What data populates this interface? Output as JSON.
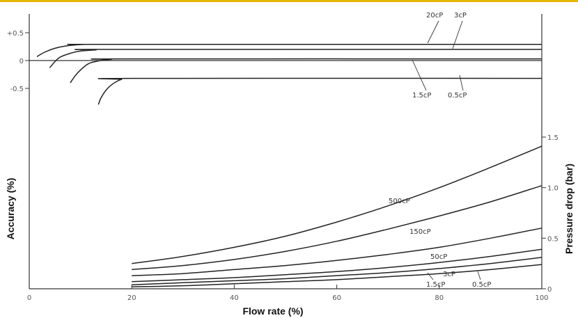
{
  "chart_data": {
    "type": "line",
    "xlabel": "Flow rate (%)",
    "ylabel_left": "Accuracy (%)",
    "ylabel_right": "Pressure drop (bar)",
    "x_ticks": [
      "0",
      "20",
      "40",
      "60",
      "80",
      "100"
    ],
    "xlim": [
      0,
      100
    ],
    "left_ticks": [
      "+0.5",
      "0",
      "-0.5"
    ],
    "left_ylim": [
      -1.0,
      0.8
    ],
    "right_ticks": [
      "1.5",
      "1.0",
      "0.5",
      "0"
    ],
    "right_ylim": [
      0,
      1.6
    ],
    "grid": false,
    "accuracy_series": [
      {
        "name": "20cP",
        "x": [
          1.5,
          3,
          5,
          7,
          9,
          11,
          15,
          100
        ],
        "y": [
          0.07,
          0.15,
          0.22,
          0.26,
          0.28,
          0.29,
          0.29,
          0.29
        ]
      },
      {
        "name": "3cP",
        "x": [
          4,
          5,
          6,
          8,
          10,
          13,
          16,
          100
        ],
        "y": [
          -0.13,
          -0.02,
          0.06,
          0.13,
          0.17,
          0.19,
          0.2,
          0.2
        ]
      },
      {
        "name": "1.5cP",
        "x": [
          8,
          9,
          10,
          11,
          12,
          14,
          16,
          19,
          100
        ],
        "y": [
          -0.4,
          -0.27,
          -0.17,
          -0.09,
          -0.04,
          0.0,
          0.02,
          0.03,
          0.03
        ]
      },
      {
        "name": "0.5cP",
        "x": [
          13.5,
          14,
          15,
          16,
          17,
          18,
          20,
          100
        ],
        "y": [
          -0.79,
          -0.67,
          -0.53,
          -0.44,
          -0.38,
          -0.34,
          -0.32,
          -0.32
        ]
      }
    ],
    "pressure_series": [
      {
        "name": "500cP",
        "x": [
          20,
          30,
          40,
          50,
          60,
          70,
          80,
          90,
          100
        ],
        "y": [
          0.25,
          0.32,
          0.41,
          0.52,
          0.66,
          0.82,
          1.0,
          1.2,
          1.41
        ]
      },
      {
        "name": "150cP",
        "x": [
          20,
          30,
          40,
          50,
          60,
          70,
          80,
          90,
          100
        ],
        "y": [
          0.19,
          0.23,
          0.29,
          0.37,
          0.47,
          0.59,
          0.72,
          0.86,
          1.02
        ]
      },
      {
        "name": "50cP",
        "x": [
          20,
          30,
          40,
          50,
          60,
          70,
          80,
          90,
          100
        ],
        "y": [
          0.13,
          0.15,
          0.19,
          0.23,
          0.28,
          0.34,
          0.41,
          0.5,
          0.6
        ]
      },
      {
        "name": "3cP",
        "x": [
          20,
          30,
          40,
          50,
          60,
          70,
          80,
          90,
          100
        ],
        "y": [
          0.07,
          0.09,
          0.11,
          0.14,
          0.17,
          0.21,
          0.26,
          0.32,
          0.39
        ]
      },
      {
        "name": "1.5cP",
        "x": [
          20,
          30,
          40,
          50,
          60,
          70,
          80,
          90,
          100
        ],
        "y": [
          0.04,
          0.06,
          0.08,
          0.1,
          0.13,
          0.16,
          0.2,
          0.25,
          0.31
        ]
      },
      {
        "name": "0.5cP",
        "x": [
          20,
          30,
          40,
          50,
          60,
          70,
          80,
          90,
          100
        ],
        "y": [
          0.02,
          0.03,
          0.05,
          0.07,
          0.09,
          0.12,
          0.15,
          0.19,
          0.24
        ]
      }
    ],
    "accuracy_labels": [
      "20cP",
      "3cP",
      "1.5cP",
      "0.5cP"
    ],
    "pressure_labels": [
      "500cP",
      "150cP",
      "50cP",
      "3cP",
      "1.5cP",
      "0.5cP"
    ]
  }
}
